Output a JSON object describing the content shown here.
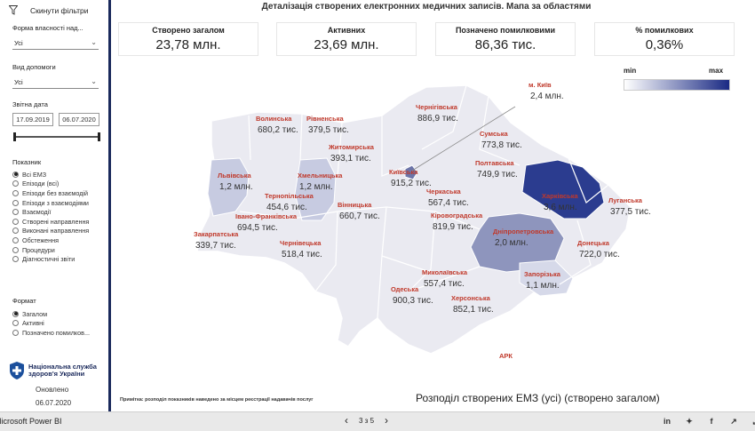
{
  "sidebar": {
    "reset_label": "Скинути фільтри",
    "ownership": {
      "label": "Форма власності над...",
      "value": "Усі"
    },
    "help_type": {
      "label": "Вид допомоги",
      "value": "Усі"
    },
    "report_date": {
      "label": "Звітна дата",
      "from": "17.09.2019",
      "to": "06.07.2020"
    },
    "indicator": {
      "label": "Показник",
      "options": [
        "Всі ЕМЗ",
        "Епізоди (всі)",
        "Епізоди без взаємодій",
        "Епізоди з взаємодіями",
        "Взаємодії",
        "Створені направлення",
        "Виконані направлення",
        "Обстеження",
        "Процедури",
        "Діагностичні звіти"
      ],
      "selected": 0
    },
    "format": {
      "label": "Формат",
      "options": [
        "Загалом",
        "Активні",
        "Позначено помилков..."
      ],
      "selected": 0
    },
    "org_name": "Національна служба здоров'я України",
    "updated_label": "Оновлено",
    "updated_date": "06.07.2020"
  },
  "title": "Деталізація створених електронних медичних записів. Мапа за областями",
  "kpis": [
    {
      "label": "Створено загалом",
      "value": "23,78 млн."
    },
    {
      "label": "Активних",
      "value": "23,69 млн."
    },
    {
      "label": "Позначено помилковими",
      "value": "86,36 тис."
    },
    {
      "label": "% помилкових",
      "value": "0,36%"
    }
  ],
  "legend": {
    "min": "min",
    "max": "max",
    "min_color": "#ffffff",
    "max_color": "#1a2a84"
  },
  "regions": [
    {
      "name": "Волинська",
      "value": "680,2 тис."
    },
    {
      "name": "Рівненська",
      "value": "379,5 тис."
    },
    {
      "name": "Житомирська",
      "value": "393,1 тис."
    },
    {
      "name": "Чернігівська",
      "value": "886,9 тис."
    },
    {
      "name": "м. Київ",
      "value": "2,4 млн."
    },
    {
      "name": "Сумська",
      "value": "773,8 тис."
    },
    {
      "name": "Львівська",
      "value": "1,2 млн."
    },
    {
      "name": "Хмельницька",
      "value": "1,2 млн."
    },
    {
      "name": "Київська",
      "value": "915,2 тис."
    },
    {
      "name": "Полтавська",
      "value": "749,9 тис."
    },
    {
      "name": "Харківська",
      "value": "3,6 млн."
    },
    {
      "name": "Тернопільська",
      "value": "454,6 тис."
    },
    {
      "name": "Вінницька",
      "value": "660,7 тис."
    },
    {
      "name": "Черкаська",
      "value": "567,4 тис."
    },
    {
      "name": "Луганська",
      "value": "377,5 тис."
    },
    {
      "name": "Івано-Франківська",
      "value": "694,5 тис."
    },
    {
      "name": "Кіровоградська",
      "value": "819,9 тис."
    },
    {
      "name": "Дніпропетровська",
      "value": "2,0 млн."
    },
    {
      "name": "Закарпатська",
      "value": "339,7 тис."
    },
    {
      "name": "Чернівецька",
      "value": "518,4 тис."
    },
    {
      "name": "Донецька",
      "value": "722,0 тис."
    },
    {
      "name": "Миколаївська",
      "value": "557,4 тис."
    },
    {
      "name": "Запорізька",
      "value": "1,1 млн."
    },
    {
      "name": "Одеська",
      "value": "900,3 тис."
    },
    {
      "name": "Херсонська",
      "value": "852,1 тис."
    },
    {
      "name": "АРК",
      "value": ""
    }
  ],
  "note": "Примітка: розподіл показників наведено за місцем реєстрації надавачів послуг",
  "caption": "Розподіл створених ЕМЗ (усі) (створено загалом)",
  "bottom": {
    "app_name": "Microsoft Power BI",
    "page": "3 з 5"
  },
  "icons": {
    "filter": "filter-icon",
    "linkedin": "linkedin-icon",
    "twitter": "twitter-icon",
    "facebook": "facebook-icon",
    "share": "share-icon",
    "fullscreen": "fullscreen-icon"
  }
}
